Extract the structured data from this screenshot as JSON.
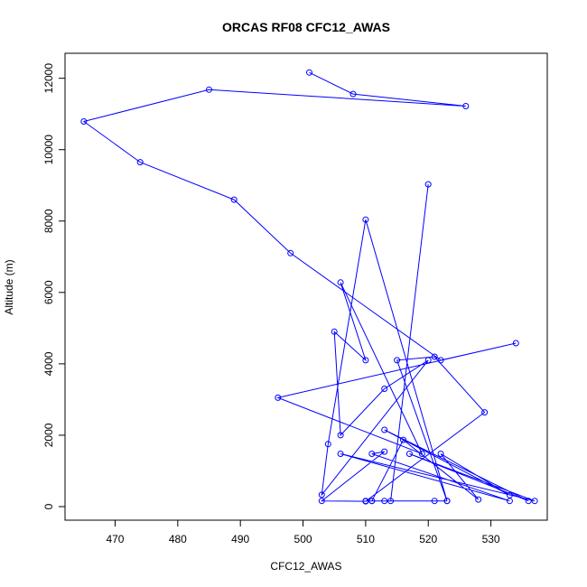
{
  "chart_data": {
    "type": "line",
    "title": "ORCAS RF08 CFC12_AWAS",
    "xlabel": "CFC12_AWAS",
    "ylabel": "Altitude (m)",
    "xlim": [
      462,
      539
    ],
    "ylim": [
      -380,
      12700
    ],
    "xticks": [
      470,
      480,
      490,
      500,
      510,
      520,
      530
    ],
    "yticks": [
      0,
      2000,
      4000,
      6000,
      8000,
      10000,
      12000
    ],
    "grid": false,
    "marker": "open-circle",
    "line_color": "#0000ff",
    "series": [
      {
        "x": [
          501,
          508,
          526,
          485,
          465,
          474,
          489,
          498,
          522,
          534,
          496,
          519,
          506,
          510,
          505,
          506,
          513,
          520,
          503,
          504,
          510,
          523,
          515,
          521,
          529,
          510,
          503,
          513,
          511,
          533,
          506,
          537,
          517,
          536,
          513,
          533,
          522,
          528,
          516,
          511,
          521,
          510,
          513,
          523,
          511,
          514,
          520
        ],
        "y": [
          12160,
          11560,
          11220,
          11680,
          10790,
          9650,
          8600,
          7100,
          4100,
          4580,
          3050,
          1480,
          6280,
          4100,
          4900,
          2000,
          3300,
          4100,
          330,
          1750,
          8040,
          160,
          4100,
          4200,
          2640,
          150,
          160,
          1540,
          1480,
          160,
          1480,
          160,
          1480,
          160,
          2150,
          320,
          1480,
          200,
          1870,
          160,
          160,
          160,
          160,
          160,
          160,
          160,
          9030
        ]
      }
    ]
  }
}
